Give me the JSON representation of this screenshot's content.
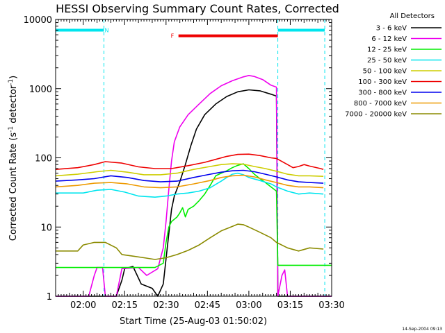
{
  "chart_data": {
    "type": "line",
    "title": "HESSI Observing Summary Count Rates, Corrected",
    "xlabel": "Start Time (25-Aug-03 01:50:02)",
    "ylabel": "Corrected Count Rate (s",
    "ylabel_sup": "-1",
    "ylabel_tail": " detector",
    "ylabel_close": ")",
    "yscale": "log",
    "ylim": [
      1,
      10000
    ],
    "xlim_minutes": [
      0,
      100
    ],
    "x_ticks": [
      {
        "m": 10,
        "label": "02:00"
      },
      {
        "m": 25,
        "label": "02:15"
      },
      {
        "m": 40,
        "label": "02:30"
      },
      {
        "m": 55,
        "label": "02:45"
      },
      {
        "m": 70,
        "label": "03:00"
      },
      {
        "m": 85,
        "label": "03:15"
      },
      {
        "m": 100,
        "label": "03:30"
      }
    ],
    "y_ticks": [
      {
        "v": 1,
        "label": "1"
      },
      {
        "v": 10,
        "label": "10"
      },
      {
        "v": 100,
        "label": "100"
      },
      {
        "v": 1000,
        "label": "1000"
      },
      {
        "v": 10000,
        "label": "10000"
      }
    ],
    "legend_title": "All Detectors",
    "legend_position": "right",
    "timestamp": "14-Sep-2004 09:13",
    "night_markers_min": [
      17.5,
      80.5,
      97.5
    ],
    "flags": [
      {
        "label": "N",
        "start": 0,
        "end": 17.5,
        "value": 7000,
        "color": "#00e5ee",
        "label_at": 18.5,
        "show_label": true
      },
      {
        "label": "F",
        "start": 44.5,
        "end": 80.5,
        "value": 5800,
        "color": "#ee0000",
        "label_at": 42.3,
        "show_label": true
      },
      {
        "label": "",
        "start": 80.5,
        "end": 97.5,
        "value": 7000,
        "color": "#00e5ee",
        "label_at": 0,
        "show_label": false
      }
    ],
    "series": [
      {
        "name": "3 - 6 keV",
        "color": "#000000",
        "points": [
          [
            0,
            1
          ],
          [
            22,
            1
          ],
          [
            24,
            1.7
          ],
          [
            25,
            2.5
          ],
          [
            28,
            2.7
          ],
          [
            31,
            1.5
          ],
          [
            35,
            1.3
          ],
          [
            37,
            1
          ],
          [
            39,
            1.5
          ],
          [
            41,
            8
          ],
          [
            42,
            18
          ],
          [
            43,
            28
          ],
          [
            45,
            45
          ],
          [
            47,
            80
          ],
          [
            49,
            150
          ],
          [
            51,
            260
          ],
          [
            54,
            420
          ],
          [
            58,
            600
          ],
          [
            62,
            770
          ],
          [
            66,
            900
          ],
          [
            70,
            960
          ],
          [
            74,
            930
          ],
          [
            78,
            830
          ],
          [
            80,
            780
          ],
          [
            80.5,
            1
          ],
          [
            100,
            1
          ]
        ]
      },
      {
        "name": "6 - 12 keV",
        "color": "#ee00ee",
        "points": [
          [
            0,
            1
          ],
          [
            12,
            1
          ],
          [
            14,
            2
          ],
          [
            15,
            2.6
          ],
          [
            17,
            2.6
          ],
          [
            18,
            1
          ],
          [
            22,
            1
          ],
          [
            24,
            2.5
          ],
          [
            30,
            2.6
          ],
          [
            33,
            2
          ],
          [
            37,
            2.5
          ],
          [
            39,
            5
          ],
          [
            40,
            12
          ],
          [
            41,
            35
          ],
          [
            42,
            90
          ],
          [
            43,
            170
          ],
          [
            45,
            280
          ],
          [
            48,
            420
          ],
          [
            52,
            600
          ],
          [
            56,
            850
          ],
          [
            60,
            1100
          ],
          [
            64,
            1300
          ],
          [
            68,
            1480
          ],
          [
            70,
            1550
          ],
          [
            72,
            1500
          ],
          [
            75,
            1350
          ],
          [
            78,
            1120
          ],
          [
            80,
            1050
          ],
          [
            80.5,
            1
          ],
          [
            82,
            2
          ],
          [
            83,
            2.4
          ],
          [
            84,
            1
          ],
          [
            100,
            1
          ]
        ]
      },
      {
        "name": "12 - 25 keV",
        "color": "#00ee00",
        "points": [
          [
            0,
            2.6
          ],
          [
            10,
            2.6
          ],
          [
            20,
            2.6
          ],
          [
            30,
            2.6
          ],
          [
            36,
            2.6
          ],
          [
            39,
            3
          ],
          [
            40,
            6
          ],
          [
            41,
            10
          ],
          [
            42,
            12
          ],
          [
            44,
            14
          ],
          [
            45,
            16
          ],
          [
            46,
            19
          ],
          [
            47,
            14
          ],
          [
            48,
            18
          ],
          [
            50,
            20
          ],
          [
            52,
            24
          ],
          [
            54,
            30
          ],
          [
            56,
            40
          ],
          [
            58,
            55
          ],
          [
            60,
            60
          ],
          [
            62,
            65
          ],
          [
            64,
            72
          ],
          [
            66,
            78
          ],
          [
            68,
            82
          ],
          [
            70,
            70
          ],
          [
            72,
            58
          ],
          [
            74,
            50
          ],
          [
            76,
            44
          ],
          [
            78,
            38
          ],
          [
            80,
            33
          ],
          [
            80.5,
            2.8
          ],
          [
            100,
            2.8
          ]
        ]
      },
      {
        "name": "25 - 50 keV",
        "color": "#00e5ee",
        "points": [
          [
            0,
            31
          ],
          [
            10,
            31
          ],
          [
            15,
            34
          ],
          [
            20,
            35
          ],
          [
            25,
            32
          ],
          [
            30,
            28
          ],
          [
            36,
            27
          ],
          [
            40,
            28
          ],
          [
            44,
            30
          ],
          [
            48,
            31
          ],
          [
            52,
            33
          ],
          [
            56,
            37
          ],
          [
            60,
            46
          ],
          [
            62,
            52
          ],
          [
            64,
            58
          ],
          [
            66,
            60
          ],
          [
            68,
            57
          ],
          [
            70,
            52
          ],
          [
            74,
            47
          ],
          [
            78,
            42
          ],
          [
            80,
            38
          ],
          [
            84,
            33
          ],
          [
            88,
            30
          ],
          [
            92,
            31
          ],
          [
            97,
            30
          ]
        ]
      },
      {
        "name": "50 - 100 keV",
        "color": "#cdcd00",
        "points": [
          [
            0,
            55
          ],
          [
            8,
            58
          ],
          [
            15,
            63
          ],
          [
            20,
            66
          ],
          [
            26,
            62
          ],
          [
            32,
            57
          ],
          [
            38,
            57
          ],
          [
            44,
            60
          ],
          [
            50,
            68
          ],
          [
            56,
            75
          ],
          [
            60,
            80
          ],
          [
            64,
            82
          ],
          [
            68,
            81
          ],
          [
            72,
            75
          ],
          [
            76,
            70
          ],
          [
            80,
            64
          ],
          [
            84,
            58
          ],
          [
            88,
            55
          ],
          [
            92,
            55
          ],
          [
            97,
            54
          ]
        ]
      },
      {
        "name": "100 - 300 keV",
        "color": "#ee0000",
        "points": [
          [
            0,
            68
          ],
          [
            8,
            72
          ],
          [
            14,
            80
          ],
          [
            18,
            88
          ],
          [
            24,
            84
          ],
          [
            30,
            74
          ],
          [
            36,
            70
          ],
          [
            42,
            70
          ],
          [
            48,
            77
          ],
          [
            54,
            86
          ],
          [
            58,
            95
          ],
          [
            62,
            105
          ],
          [
            66,
            112
          ],
          [
            70,
            113
          ],
          [
            74,
            108
          ],
          [
            78,
            100
          ],
          [
            80,
            98
          ],
          [
            84,
            80
          ],
          [
            86,
            72
          ],
          [
            88,
            75
          ],
          [
            90,
            80
          ],
          [
            92,
            76
          ],
          [
            96,
            70
          ],
          [
            97,
            68
          ]
        ]
      },
      {
        "name": "300 - 800 keV",
        "color": "#0000ee",
        "points": [
          [
            0,
            46
          ],
          [
            8,
            48
          ],
          [
            14,
            50
          ],
          [
            20,
            55
          ],
          [
            26,
            52
          ],
          [
            32,
            47
          ],
          [
            38,
            45
          ],
          [
            44,
            46
          ],
          [
            50,
            52
          ],
          [
            56,
            58
          ],
          [
            60,
            62
          ],
          [
            64,
            65
          ],
          [
            68,
            66
          ],
          [
            72,
            63
          ],
          [
            76,
            58
          ],
          [
            80,
            53
          ],
          [
            84,
            48
          ],
          [
            88,
            45
          ],
          [
            92,
            44
          ],
          [
            97,
            43
          ]
        ]
      },
      {
        "name": "800 - 7000 keV",
        "color": "#ee9a00",
        "points": [
          [
            0,
            38
          ],
          [
            8,
            40
          ],
          [
            14,
            43
          ],
          [
            20,
            44
          ],
          [
            26,
            42
          ],
          [
            32,
            38
          ],
          [
            38,
            37
          ],
          [
            44,
            38
          ],
          [
            50,
            42
          ],
          [
            56,
            47
          ],
          [
            60,
            52
          ],
          [
            64,
            55
          ],
          [
            68,
            56
          ],
          [
            72,
            53
          ],
          [
            76,
            48
          ],
          [
            80,
            44
          ],
          [
            84,
            40
          ],
          [
            88,
            38
          ],
          [
            92,
            38
          ],
          [
            97,
            37
          ]
        ]
      },
      {
        "name": "7000 - 20000 keV",
        "color": "#8b8b00",
        "points": [
          [
            0,
            4.5
          ],
          [
            8,
            4.5
          ],
          [
            10,
            5.5
          ],
          [
            14,
            6
          ],
          [
            18,
            6
          ],
          [
            22,
            5
          ],
          [
            24,
            4
          ],
          [
            28,
            3.8
          ],
          [
            32,
            3.6
          ],
          [
            36,
            3.4
          ],
          [
            40,
            3.6
          ],
          [
            44,
            4
          ],
          [
            48,
            4.6
          ],
          [
            52,
            5.5
          ],
          [
            56,
            7
          ],
          [
            60,
            8.8
          ],
          [
            64,
            10.2
          ],
          [
            66,
            11
          ],
          [
            68,
            10.8
          ],
          [
            70,
            10
          ],
          [
            74,
            8.4
          ],
          [
            78,
            7
          ],
          [
            80,
            6
          ],
          [
            84,
            5
          ],
          [
            88,
            4.5
          ],
          [
            92,
            5
          ],
          [
            97,
            4.8
          ]
        ]
      }
    ]
  }
}
